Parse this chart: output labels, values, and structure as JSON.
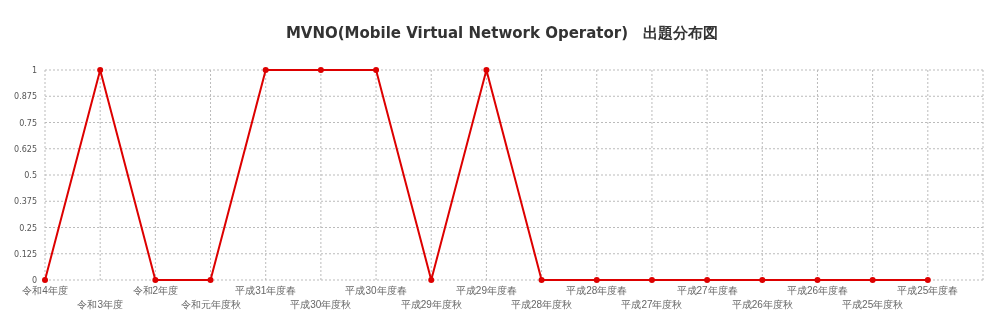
{
  "chart_data": {
    "type": "line",
    "title": "MVNO(Mobile Virtual Network Operator)　出題分布図",
    "categories": [
      "令和4年度",
      "令和3年度",
      "令和2年度",
      "令和元年度秋",
      "平成31年度春",
      "平成30年度秋",
      "平成30年度春",
      "平成29年度秋",
      "平成29年度春",
      "平成28年度秋",
      "平成28年度春",
      "平成27年度秋",
      "平成27年度春",
      "平成26年度秋",
      "平成26年度春",
      "平成25年度秋",
      "平成25年度春"
    ],
    "series": [
      {
        "color": "#dd0000",
        "values": [
          0,
          1,
          0,
          0,
          1,
          1,
          1,
          0,
          1,
          0,
          0,
          0,
          0,
          0,
          0,
          0,
          0
        ]
      }
    ],
    "ylim": [
      0,
      1
    ],
    "yticks": [
      0,
      0.125,
      0.25,
      0.375,
      0.5,
      0.625,
      0.75,
      0.875,
      1
    ],
    "grid": true,
    "marker": "circle",
    "line_style": "solid"
  }
}
